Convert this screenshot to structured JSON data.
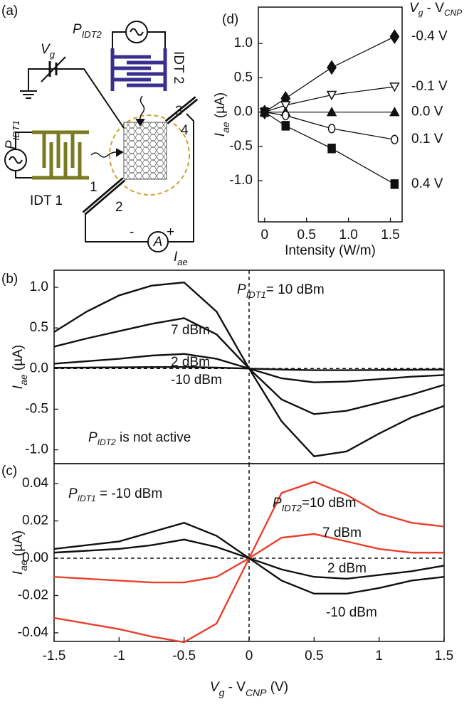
{
  "diagram": {
    "panel_label": "(a)",
    "gate": {
      "main": "V",
      "sub": "g"
    },
    "source2": {
      "main": "P",
      "sub": "IDT2"
    },
    "idt2": "IDT 2",
    "source1": {
      "main": "P",
      "sub": "IDT1"
    },
    "idt1": "IDT 1",
    "contacts": [
      "1",
      "2",
      "3",
      "4"
    ],
    "minus": "-",
    "plus": "+",
    "meter": "A",
    "current": {
      "main": "I",
      "sub": "ae"
    }
  },
  "chart_data": [
    {
      "type": "line",
      "panel_label": "(d)",
      "x_label": "Intensity (W/m)",
      "y_label": {
        "main": "I",
        "sub": "ae",
        "rest": " (µA)"
      },
      "legend_title": {
        "main": "V",
        "sub": "g",
        "mid": " - V",
        "sub2": "CNP"
      },
      "x": [
        0,
        0.25,
        0.8,
        1.55
      ],
      "xlim": [
        -0.075,
        1.64
      ],
      "ylim": [
        -1.6,
        1.53
      ],
      "xticks": [
        0,
        0.5,
        {
          "value": 1,
          "label": "1.0"
        },
        1.5
      ],
      "yticks": [
        {
          "value": -1,
          "label": "-1.0"
        },
        -0.5,
        {
          "value": 0,
          "label": "0.0"
        },
        0.5,
        {
          "value": 1,
          "label": "1.0"
        }
      ],
      "series": [
        {
          "name": "-0.4 V",
          "color": "#111111",
          "marker": "diamond",
          "filled": true,
          "values": [
            0,
            0.2,
            0.65,
            1.1
          ]
        },
        {
          "name": "-0.1 V",
          "color": "#111111",
          "marker": "triangle-down",
          "filled": false,
          "values": [
            0,
            0.1,
            0.25,
            0.37
          ]
        },
        {
          "name": "0.0 V",
          "color": "#111111",
          "marker": "triangle-up",
          "filled": true,
          "values": [
            0,
            0,
            0,
            0
          ]
        },
        {
          "name": "0.1 V",
          "color": "#111111",
          "marker": "circle",
          "filled": false,
          "values": [
            0,
            -0.05,
            -0.24,
            -0.4
          ]
        },
        {
          "name": "0.4 V",
          "color": "#111111",
          "marker": "square",
          "filled": true,
          "values": [
            0,
            -0.2,
            -0.53,
            -1.05
          ]
        }
      ]
    },
    {
      "type": "line",
      "panel_label": "(b)",
      "y_label": {
        "main": "I",
        "sub": "ae",
        "rest": " (µA)"
      },
      "x": [
        -1.5,
        -1.25,
        -1,
        -0.75,
        -0.5,
        -0.25,
        0,
        0.25,
        0.5,
        0.75,
        1,
        1.25,
        1.5
      ],
      "xlim": [
        -1.5,
        1.5
      ],
      "ylim": [
        -1.17,
        1.21
      ],
      "yticks": [
        {
          "value": -1,
          "label": "-1.0"
        },
        -0.5,
        {
          "value": 0,
          "label": "0.0"
        },
        0.5,
        {
          "value": 1,
          "label": "1.0"
        }
      ],
      "annotations": [
        {
          "main": "P",
          "sub": "IDT2",
          "text": " is not active"
        }
      ],
      "series": [
        {
          "name": "= 10 dBm",
          "label_prefix": {
            "main": "P",
            "sub": "IDT1"
          },
          "color": "#111111",
          "values": [
            0.45,
            0.7,
            0.9,
            1.02,
            1.06,
            0.7,
            0,
            -0.65,
            -1.08,
            -1.02,
            -0.8,
            -0.6,
            -0.46
          ]
        },
        {
          "name": "7 dBm",
          "color": "#111111",
          "values": [
            0.27,
            0.37,
            0.46,
            0.55,
            0.62,
            0.42,
            0,
            -0.38,
            -0.56,
            -0.52,
            -0.42,
            -0.32,
            -0.2
          ]
        },
        {
          "name": "2 dBm",
          "color": "#111111",
          "values": [
            0.06,
            0.09,
            0.12,
            0.16,
            0.18,
            0.12,
            0,
            -0.12,
            -0.17,
            -0.16,
            -0.13,
            -0.1,
            -0.08
          ]
        },
        {
          "name": "-10 dBm",
          "color": "#111111",
          "values": [
            0.01,
            0.012,
            0.015,
            0.018,
            0.02,
            0.012,
            0,
            -0.012,
            -0.02,
            -0.02,
            -0.018,
            -0.015,
            -0.012
          ]
        }
      ]
    },
    {
      "type": "line",
      "panel_label": "(c)",
      "x_label": {
        "main": "V",
        "sub": "g",
        "mid": " - V",
        "sub2": "CNP",
        "rest": " (V)"
      },
      "y_label": {
        "main": "I",
        "sub": "ae",
        "rest": " (µA)"
      },
      "x": [
        -1.5,
        -1.25,
        -1,
        -0.75,
        -0.5,
        -0.25,
        0,
        0.25,
        0.5,
        0.75,
        1,
        1.25,
        1.5
      ],
      "xlim": [
        -1.5,
        1.5
      ],
      "ylim": [
        -0.0446,
        0.0507
      ],
      "xticks": [
        -1.5,
        -1,
        -0.5,
        0,
        0.5,
        1,
        1.5
      ],
      "yticks": [
        -0.04,
        -0.02,
        {
          "value": 0,
          "label": "0.00"
        },
        0.02,
        0.04
      ],
      "annotations": [
        {
          "main": "P",
          "sub": "IDT1",
          "text": " = -10 dBm"
        }
      ],
      "series": [
        {
          "name": "=10 dBm",
          "label_prefix": {
            "main": "P",
            "sub": "IDT2"
          },
          "color": "#e8402a",
          "values": [
            -0.032,
            -0.035,
            -0.038,
            -0.042,
            -0.045,
            -0.035,
            0,
            0.035,
            0.041,
            0.034,
            0.024,
            0.019,
            0.017
          ]
        },
        {
          "name": "7 dBm",
          "color": "#e8402a",
          "values": [
            -0.01,
            -0.011,
            -0.012,
            -0.013,
            -0.013,
            -0.01,
            0,
            0.011,
            0.013,
            0.009,
            0.005,
            0.003,
            0.003
          ]
        },
        {
          "name": "2 dBm",
          "color": "#111111",
          "values": [
            0.003,
            0.004,
            0.005,
            0.007,
            0.01,
            0.006,
            0,
            -0.006,
            -0.01,
            -0.011,
            -0.009,
            -0.007,
            -0.004
          ]
        },
        {
          "name": "-10 dBm",
          "color": "#111111",
          "values": [
            0.005,
            0.007,
            0.009,
            0.014,
            0.019,
            0.012,
            0,
            -0.012,
            -0.019,
            -0.019,
            -0.016,
            -0.012,
            -0.01
          ]
        }
      ]
    }
  ]
}
